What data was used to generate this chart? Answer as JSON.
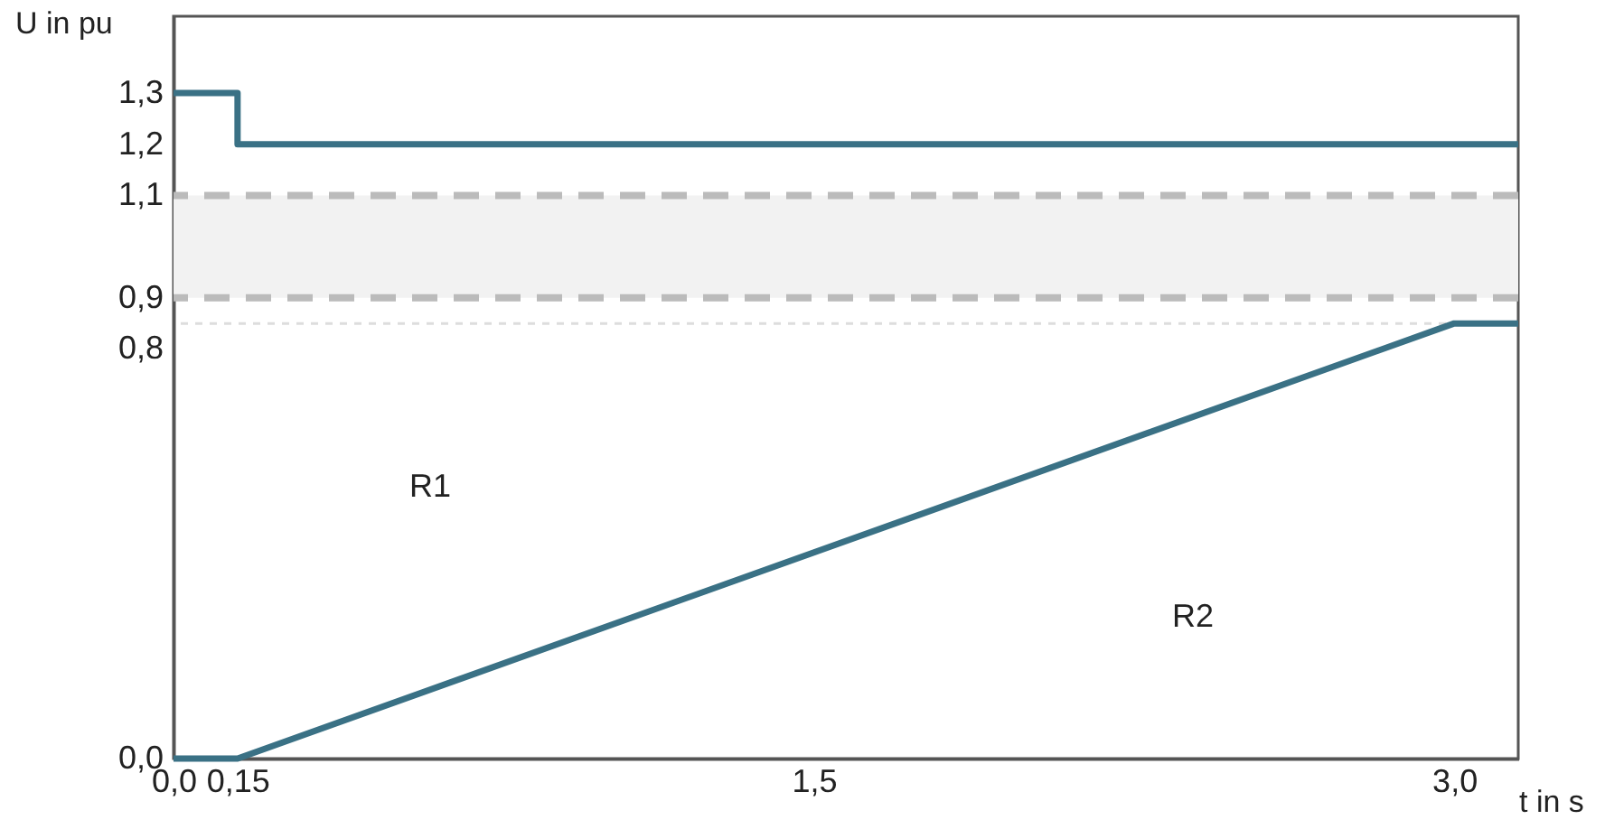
{
  "chart_data": {
    "type": "line",
    "xlabel": "t in s",
    "ylabel": "U in pu",
    "xlim": [
      0,
      3.15
    ],
    "ylim": [
      0,
      1.45
    ],
    "xticks": [
      {
        "value": 0,
        "label": "0,0"
      },
      {
        "value": 0.15,
        "label": "0,15"
      },
      {
        "value": 1.5,
        "label": "1,5"
      },
      {
        "value": 3,
        "label": "3,0"
      }
    ],
    "yticks": [
      {
        "value": 0,
        "label": "0,0"
      },
      {
        "value": 0.8,
        "label": "0,8"
      },
      {
        "value": 0.9,
        "label": "0,9"
      },
      {
        "value": 1.1,
        "label": "1,1"
      },
      {
        "value": 1.2,
        "label": "1,2"
      },
      {
        "value": 1.3,
        "label": "1,3"
      }
    ],
    "series": [
      {
        "color": "#3a7185",
        "x": [
          0,
          0.15,
          0.15,
          3.15
        ],
        "values": [
          1.3,
          1.3,
          1.2,
          1.2
        ]
      },
      {
        "color": "#3a7185",
        "x": [
          0,
          0.15,
          3.0,
          3.15
        ],
        "values": [
          0,
          0,
          0.85,
          0.85
        ]
      }
    ],
    "bands": [
      {
        "axis": "y",
        "from": 0.9,
        "to": 1.1,
        "color": "#f2f2f2"
      }
    ],
    "ref_lines": [
      {
        "axis": "y",
        "value": 0.9,
        "color": "#bbbbbb",
        "line_style": "dashed"
      },
      {
        "axis": "y",
        "value": 1.1,
        "color": "#bbbbbb",
        "line_style": "dashed"
      },
      {
        "axis": "y",
        "value": 0.85,
        "color": "#dddddd",
        "line_style": "dotted"
      }
    ],
    "annotations": [
      "R1",
      "R2"
    ]
  }
}
